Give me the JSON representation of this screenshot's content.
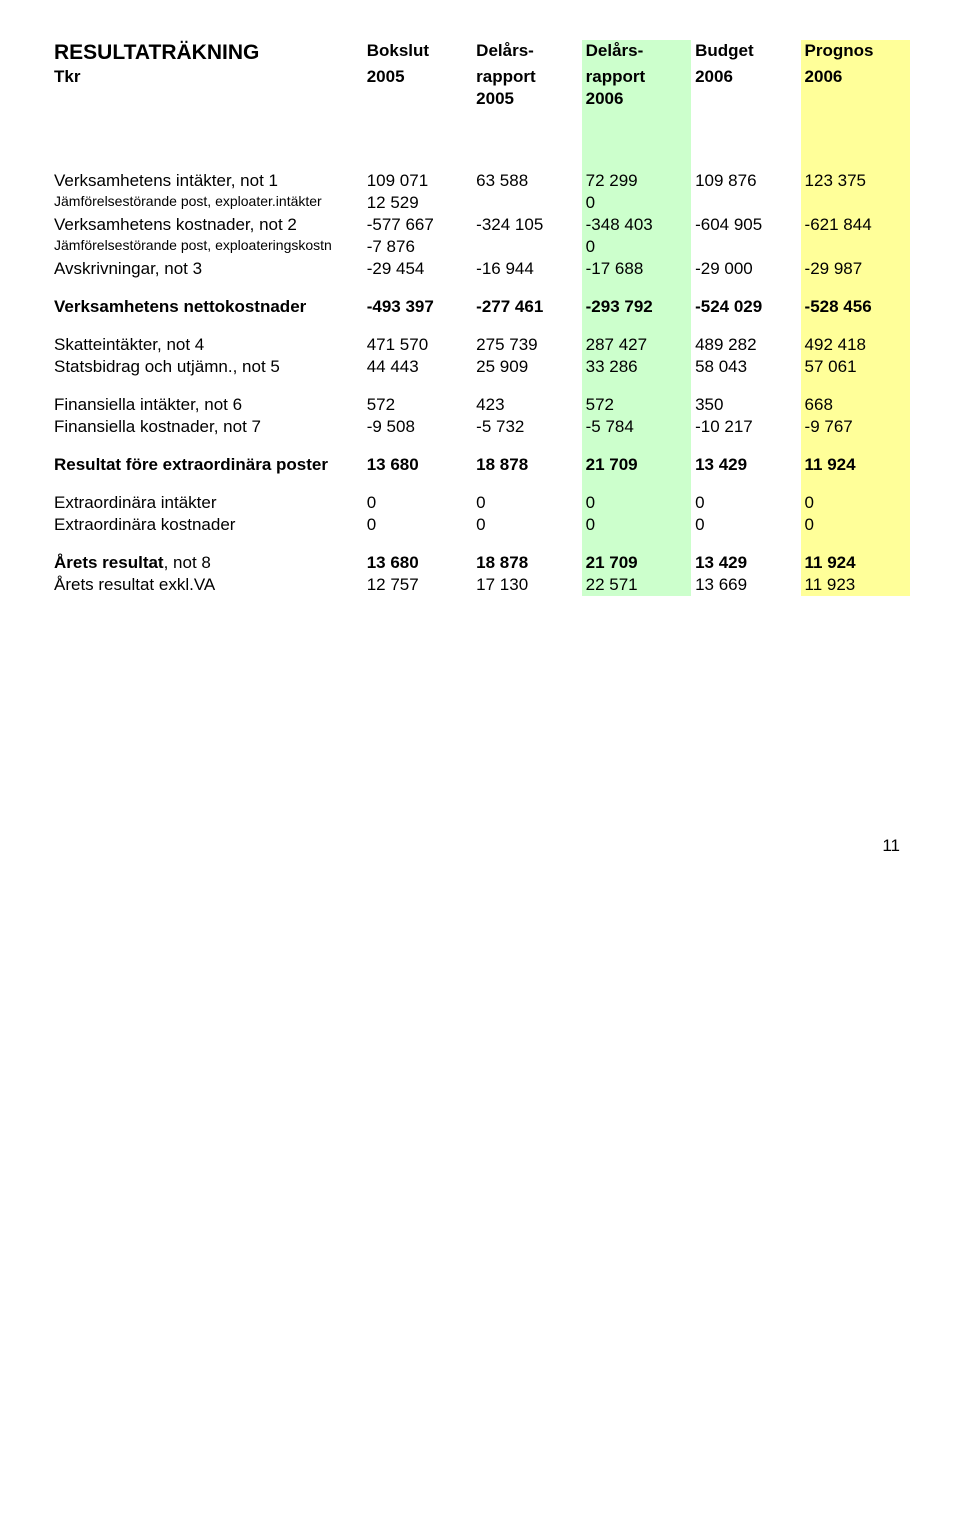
{
  "header": {
    "title": "RESULTATRÄKNING",
    "unit": "Tkr",
    "cols": [
      {
        "l1": "Bokslut",
        "l2": "2005",
        "l3": ""
      },
      {
        "l1": "Delårs-",
        "l2": "rapport",
        "l3": "2005"
      },
      {
        "l1": "Delårs-",
        "l2": "rapport",
        "l3": "2006"
      },
      {
        "l1": "Budget",
        "l2": "2006",
        "l3": ""
      },
      {
        "l1": "Prognos",
        "l2": "2006",
        "l3": ""
      }
    ]
  },
  "colors": {
    "green": "#ccffcc",
    "yellow": "#ffff99"
  },
  "rows": [
    {
      "label": "Verksamhetens intäkter, not 1",
      "v": [
        "109 071",
        "63 588",
        "72 299",
        "109 876",
        "123 375"
      ]
    },
    {
      "label": "Jämförelsestörande post, exploater.intäkter",
      "small": true,
      "v": [
        "12 529",
        "",
        "0",
        "",
        ""
      ]
    },
    {
      "label": "Verksamhetens kostnader, not 2",
      "v": [
        "-577 667",
        "-324 105",
        "-348 403",
        "-604 905",
        "-621 844"
      ]
    },
    {
      "label": "Jämförelsestörande post, exploateringskostn",
      "small": true,
      "v": [
        "-7 876",
        "",
        "0",
        "",
        ""
      ]
    },
    {
      "label": "Avskrivningar, not 3",
      "v": [
        "-29 454",
        "-16 944",
        "-17 688",
        "-29 000",
        "-29 987"
      ]
    }
  ],
  "netto": {
    "label": "Verksamhetens nettokostnader",
    "v": [
      "-493 397",
      "-277 461",
      "-293 792",
      "-524 029",
      "-528 456"
    ]
  },
  "rows2": [
    {
      "label": "Skatteintäkter, not 4",
      "v": [
        "471 570",
        "275 739",
        "287 427",
        "489 282",
        "492 418"
      ]
    },
    {
      "label": "Statsbidrag och utjämn., not 5",
      "v": [
        "44 443",
        "25 909",
        "33 286",
        "58 043",
        "57 061"
      ]
    }
  ],
  "rows3": [
    {
      "label": "Finansiella intäkter, not 6",
      "v": [
        "572",
        "423",
        "572",
        "350",
        "668"
      ]
    },
    {
      "label": "Finansiella kostnader, not 7",
      "v": [
        "-9 508",
        "-5 732",
        "-5 784",
        "-10 217",
        "-9 767"
      ]
    }
  ],
  "resultat_extra": {
    "label": "Resultat före extraordinära poster",
    "v": [
      "13 680",
      "18 878",
      "21 709",
      "13 429",
      "11 924"
    ]
  },
  "rows4": [
    {
      "label": "Extraordinära intäkter",
      "v": [
        "0",
        "0",
        "0",
        "0",
        "0"
      ]
    },
    {
      "label": "Extraordinära kostnader",
      "v": [
        "0",
        "0",
        "0",
        "0",
        "0"
      ]
    }
  ],
  "arets": {
    "label_bold": "Årets resultat",
    "label_suffix": ", not 8",
    "v": [
      "13 680",
      "18 878",
      "21 709",
      "13 429",
      "11 924"
    ]
  },
  "arets_exkl": {
    "label": "Årets resultat exkl.VA",
    "v": [
      "12 757",
      "17 130",
      "22 571",
      "13 669",
      "11 923"
    ]
  },
  "page_number": "11"
}
